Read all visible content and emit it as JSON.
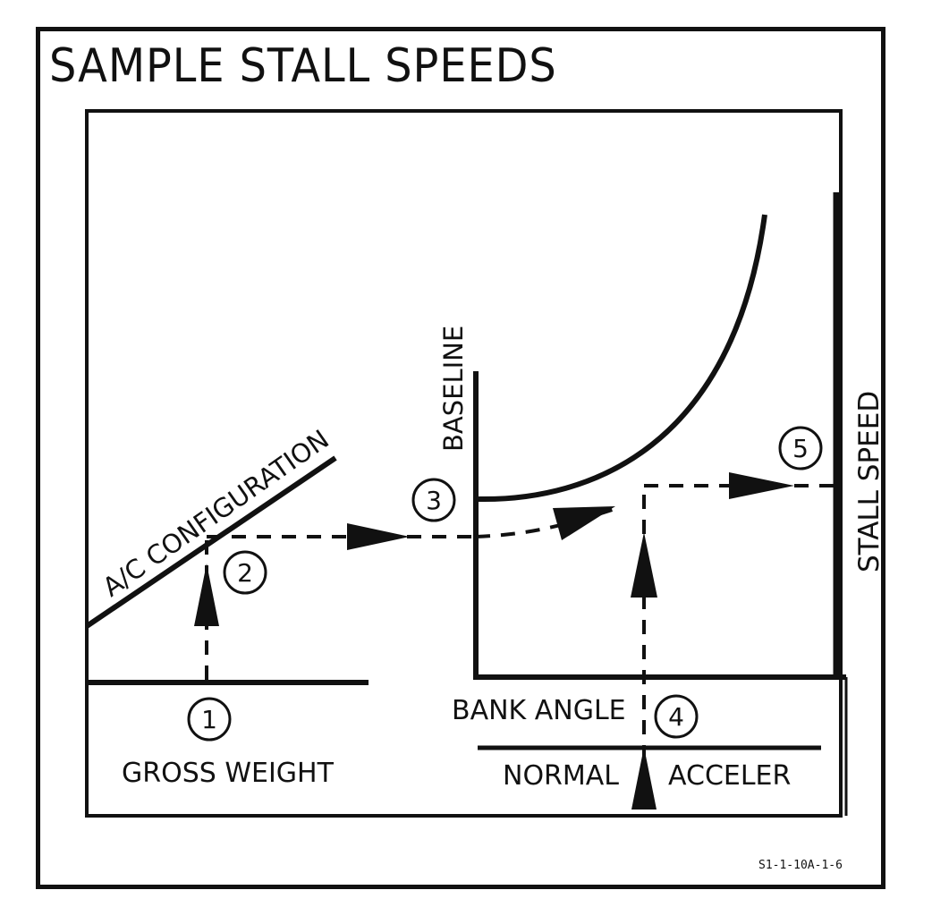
{
  "title": "SAMPLE STALL SPEEDS",
  "doc_code": "S1-1-10A-1-6",
  "labels": {
    "ac_configuration": "A/C CONFIGURATION",
    "baseline": "BASELINE",
    "stall_speed": "STALL SPEED",
    "bank_angle": "BANK ANGLE",
    "gross_weight": "GROSS WEIGHT",
    "normal": "NORMAL",
    "acceler": "ACCELER"
  },
  "steps": [
    "1",
    "2",
    "3",
    "4",
    "5"
  ],
  "colors": {
    "ink": "#111111",
    "paper": "#ffffff"
  }
}
